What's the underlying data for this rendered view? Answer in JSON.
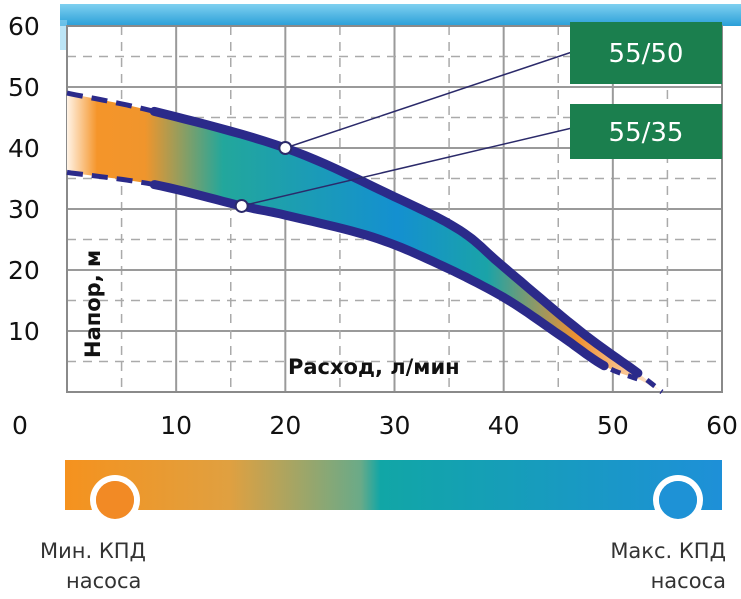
{
  "chart_data": {
    "type": "line",
    "xlabel": "Расход, л/мин",
    "ylabel": "Напор, м",
    "xlim": [
      0,
      60
    ],
    "ylim": [
      0,
      60
    ],
    "x_ticks": [
      "0",
      "10",
      "20",
      "30",
      "40",
      "50",
      "60"
    ],
    "y_ticks": [
      "10",
      "20",
      "30",
      "40",
      "50",
      "60"
    ],
    "grid": "major solid every 10, minor dashed every 5",
    "series": [
      {
        "name": "55/50",
        "color": "#2b2a8a",
        "points": [
          [
            0,
            49
          ],
          [
            8,
            46
          ],
          [
            20,
            40
          ],
          [
            30,
            32
          ],
          [
            36,
            26.5
          ],
          [
            40,
            20.5
          ],
          [
            47,
            10
          ],
          [
            52.3,
            3.1
          ],
          [
            54.5,
            0
          ]
        ],
        "solid_range": [
          8,
          52.3
        ],
        "marker": [
          20,
          40
        ]
      },
      {
        "name": "55/35",
        "color": "#2b2a8a",
        "points": [
          [
            0,
            36
          ],
          [
            8,
            34
          ],
          [
            16,
            30.5
          ],
          [
            20,
            29
          ],
          [
            28,
            25.4
          ],
          [
            34,
            21
          ],
          [
            40,
            15.5
          ],
          [
            45,
            9.5
          ],
          [
            49.2,
            4.3
          ],
          [
            52.5,
            2
          ]
        ],
        "solid_range": [
          8,
          49.2
        ],
        "marker": [
          16,
          30.5
        ]
      }
    ],
    "label_box_color": "#1b7f4e",
    "efficiency_scale": {
      "min_label": "Мин. КПД",
      "min_sub": "насоса",
      "max_label": "Макс. КПД",
      "max_sub": "насоса",
      "min_color": "#f28a25",
      "mid_color": "#13a6a6",
      "max_color": "#1e92d6"
    }
  }
}
